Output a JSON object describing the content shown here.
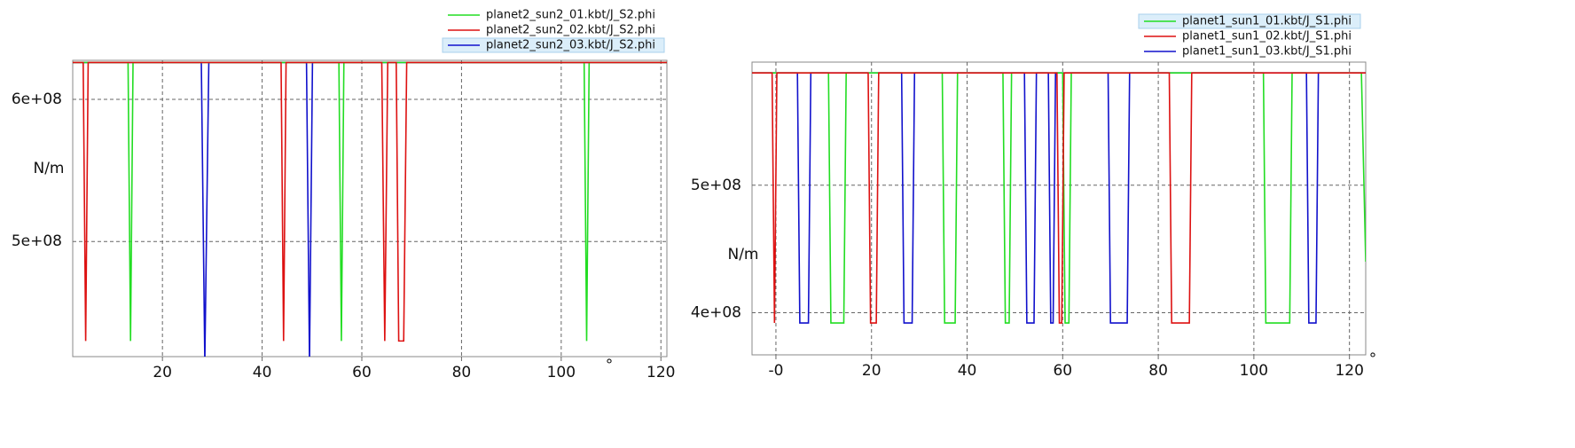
{
  "chart_data": [
    {
      "type": "line",
      "y_label": "N/m",
      "x_label": "°",
      "highlighted_series": 2,
      "xlim": [
        2,
        121.2
      ],
      "xticks": [
        20,
        40,
        60,
        80,
        100,
        120
      ],
      "ylim": [
        419000000,
        627500000
      ],
      "yticks": [
        {
          "value": 500000000,
          "label": "5e+08"
        },
        {
          "value": 600000000,
          "label": "6e+08"
        }
      ],
      "grid": true,
      "series": [
        {
          "name": "planet2_sun2_01.kbt/J_S2.phi",
          "color": "#22dd22",
          "x": [
            2,
            13.1,
            13.6,
            14.1,
            55.4,
            55.9,
            56.4,
            104.6,
            105.1,
            105.6,
            121.2
          ],
          "values": [
            626000000,
            626000000,
            430000000,
            626000000,
            626000000,
            430000000,
            626000000,
            626000000,
            430000000,
            626000000,
            626000000
          ]
        },
        {
          "name": "planet2_sun2_02.kbt/J_S2.phi",
          "color": "#dd1111",
          "x": [
            2,
            4.1,
            4.6,
            5.1,
            43.8,
            44.3,
            44.8,
            64.0,
            64.6,
            65.2,
            66.9,
            67.4,
            68.4,
            69.0,
            121.2
          ],
          "values": [
            626000000,
            626000000,
            430000000,
            626000000,
            626000000,
            430000000,
            626000000,
            626000000,
            430000000,
            626000000,
            626000000,
            430000000,
            430000000,
            626000000,
            626000000
          ]
        },
        {
          "name": "planet2_sun2_03.kbt/J_S2.phi",
          "color": "#1111cc",
          "x": [
            2,
            27.8,
            28.5,
            29.3,
            48.9,
            49.5,
            50.1,
            121.2
          ],
          "values": [
            626000000,
            626000000,
            415000000,
            626000000,
            626000000,
            415000000,
            626000000,
            626000000
          ]
        }
      ]
    },
    {
      "type": "line",
      "y_label": "N/m",
      "x_label": "°",
      "highlighted_series": 0,
      "xlim": [
        -5,
        123.4
      ],
      "xticks": [
        {
          "value": 0,
          "label": "-0"
        },
        20,
        40,
        60,
        80,
        100,
        120
      ],
      "ylim": [
        367000000,
        596500000
      ],
      "yticks": [
        {
          "value": 400000000,
          "label": "4e+08"
        },
        {
          "value": 500000000,
          "label": "5e+08"
        }
      ],
      "grid": true,
      "series": [
        {
          "name": "planet1_sun1_01.kbt/J_S1.phi",
          "color": "#22dd22",
          "x": [
            -5,
            11.0,
            11.5,
            14.2,
            14.7,
            34.8,
            35.3,
            37.5,
            38.0,
            47.5,
            48.0,
            48.8,
            49.3,
            60.0,
            60.5,
            61.3,
            61.8,
            102.0,
            102.5,
            107.5,
            108.0,
            122.5,
            123.4
          ],
          "values": [
            588000000,
            588000000,
            392000000,
            392000000,
            588000000,
            588000000,
            392000000,
            392000000,
            588000000,
            588000000,
            392000000,
            392000000,
            588000000,
            588000000,
            392000000,
            392000000,
            588000000,
            588000000,
            392000000,
            392000000,
            588000000,
            588000000,
            440000000
          ]
        },
        {
          "name": "planet1_sun1_02.kbt/J_S1.phi",
          "color": "#dd1111",
          "x": [
            -5,
            -0.8,
            -0.3,
            0.2,
            19.3,
            19.8,
            21.0,
            21.5,
            58.8,
            59.3,
            59.8,
            60.3,
            82.3,
            82.8,
            86.5,
            87.0,
            123.4
          ],
          "values": [
            588000000,
            588000000,
            392000000,
            588000000,
            588000000,
            392000000,
            392000000,
            588000000,
            588000000,
            392000000,
            392000000,
            588000000,
            588000000,
            392000000,
            392000000,
            588000000,
            588000000
          ]
        },
        {
          "name": "planet1_sun1_03.kbt/J_S1.phi",
          "color": "#1111cc",
          "x": [
            -5,
            4.5,
            5.0,
            6.8,
            7.3,
            26.3,
            26.8,
            28.5,
            29.0,
            52.0,
            52.5,
            54.0,
            54.5,
            57.0,
            57.5,
            58.0,
            58.5,
            69.5,
            70.0,
            73.5,
            74.0,
            111.0,
            111.5,
            113.0,
            113.5,
            123.4
          ],
          "values": [
            588000000,
            588000000,
            392000000,
            392000000,
            588000000,
            588000000,
            392000000,
            392000000,
            588000000,
            588000000,
            392000000,
            392000000,
            588000000,
            588000000,
            392000000,
            392000000,
            588000000,
            588000000,
            392000000,
            392000000,
            588000000,
            588000000,
            392000000,
            392000000,
            588000000,
            588000000
          ]
        }
      ]
    }
  ]
}
